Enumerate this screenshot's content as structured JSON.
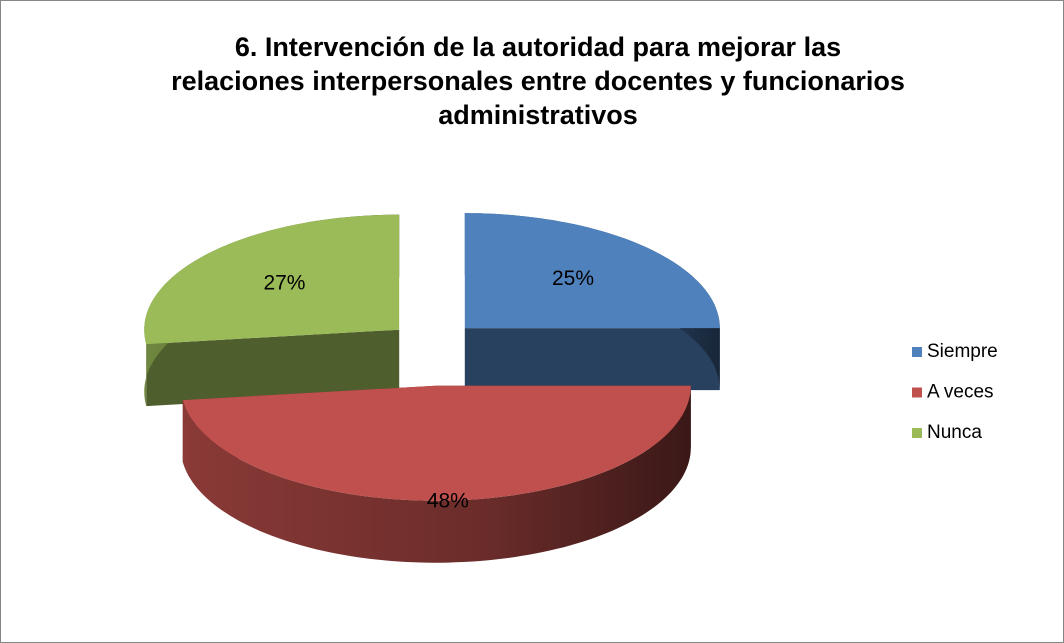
{
  "chart_data": {
    "type": "pie",
    "title": "6. Intervención de la autoridad para mejorar las relaciones interpersonales entre docentes y funcionarios administrativos",
    "categories": [
      "Siempre",
      "A veces",
      "Nunca"
    ],
    "values": [
      25,
      48,
      27
    ],
    "value_labels": [
      "25%",
      "48%",
      "27%"
    ],
    "colors": [
      "#4f81bd",
      "#c0504d",
      "#9bbb59"
    ],
    "legend": "right"
  }
}
